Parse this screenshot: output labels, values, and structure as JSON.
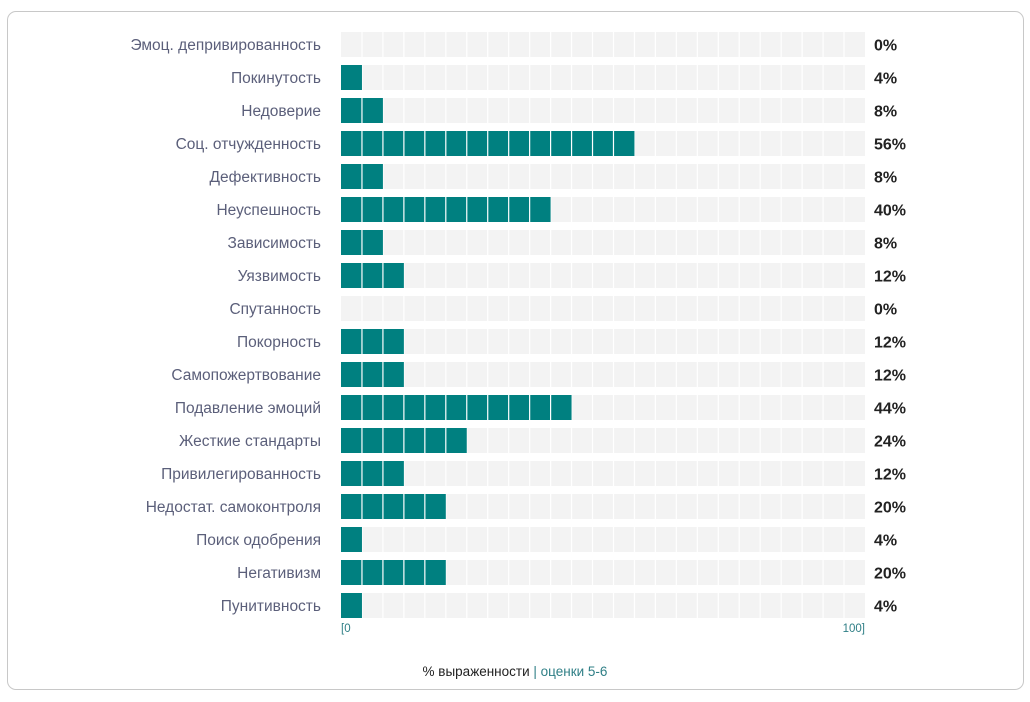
{
  "chart_data": {
    "type": "bar",
    "orientation": "horizontal",
    "categories": [
      "Эмоц. депривированность",
      "Покинутость",
      "Недоверие",
      "Соц. отчужденность",
      "Дефективность",
      "Неуспешность",
      "Зависимость",
      "Уязвимость",
      "Спутанность",
      "Покорность",
      "Самопожертвование",
      "Подавление эмоций",
      "Жесткие стандарты",
      "Привилегированность",
      "Недостат. самоконтроля",
      "Поиск одобрения",
      "Негативизм",
      "Пунитивность"
    ],
    "values": [
      0,
      4,
      8,
      56,
      8,
      40,
      8,
      12,
      0,
      12,
      12,
      44,
      24,
      12,
      20,
      4,
      20,
      4
    ],
    "value_labels": [
      "0%",
      "4%",
      "8%",
      "56%",
      "8%",
      "40%",
      "8%",
      "12%",
      "0%",
      "12%",
      "12%",
      "44%",
      "24%",
      "12%",
      "20%",
      "4%",
      "20%",
      "4%"
    ],
    "xlim": [
      0,
      100
    ],
    "x_tick_labels": [
      "[0",
      "100]"
    ],
    "xlabel": "% выраженности",
    "xlabel_sep": "|",
    "xlabel_sub": "оценки 5-6",
    "colors": {
      "bar": "#008080",
      "track": "#f3f3f3",
      "label": "#5b5f7a",
      "value": "#222222",
      "axis": "#2f7f86"
    }
  }
}
